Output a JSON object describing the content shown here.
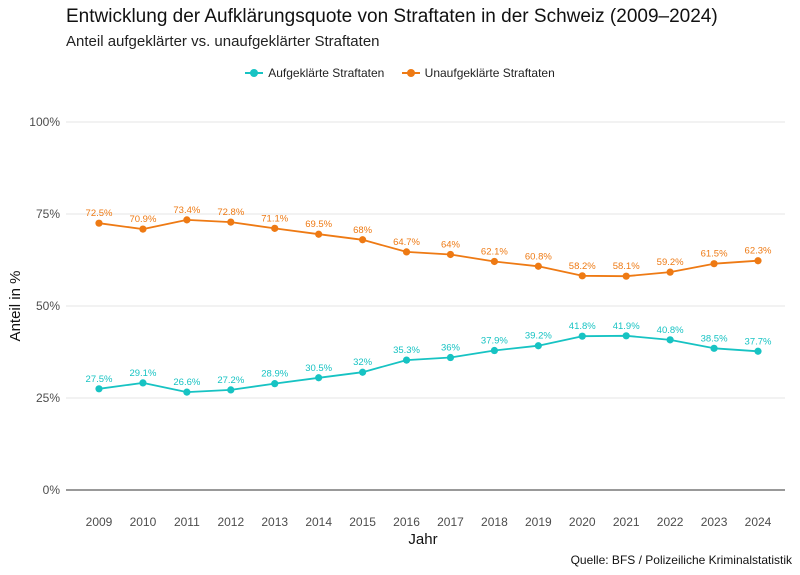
{
  "chart_data": {
    "type": "line",
    "title": "Entwicklung der Aufklärungsquote von Straftaten in der Schweiz (2009–2024)",
    "subtitle": "Anteil aufgeklärter vs. unaufgeklärter Straftaten",
    "xlabel": "Jahr",
    "ylabel": "Anteil in %",
    "caption": "Quelle: BFS / Polizeiliche Kriminalstatistik",
    "legend_position": "top",
    "grid": true,
    "ylim": [
      0,
      100
    ],
    "yticks": [
      0,
      25,
      50,
      75,
      100
    ],
    "ytick_labels": [
      "0%",
      "25%",
      "50%",
      "75%",
      "100%"
    ],
    "x": [
      "2009",
      "2010",
      "2011",
      "2012",
      "2013",
      "2014",
      "2015",
      "2016",
      "2017",
      "2018",
      "2019",
      "2020",
      "2021",
      "2022",
      "2023",
      "2024"
    ],
    "series": [
      {
        "name": "Aufgeklärte Straftaten",
        "color": "#17c3c3",
        "values": [
          27.5,
          29.1,
          26.6,
          27.2,
          28.9,
          30.5,
          32,
          35.3,
          36,
          37.9,
          39.2,
          41.8,
          41.9,
          40.8,
          38.5,
          37.7
        ],
        "labels": [
          "27.5%",
          "29.1%",
          "26.6%",
          "27.2%",
          "28.9%",
          "30.5%",
          "32%",
          "35.3%",
          "36%",
          "37.9%",
          "39.2%",
          "41.8%",
          "41.9%",
          "40.8%",
          "38.5%",
          "37.7%"
        ]
      },
      {
        "name": "Unaufgeklärte Straftaten",
        "color": "#ee7a14",
        "values": [
          72.5,
          70.9,
          73.4,
          72.8,
          71.1,
          69.5,
          68,
          64.7,
          64,
          62.1,
          60.8,
          58.2,
          58.1,
          59.2,
          61.5,
          62.3
        ],
        "labels": [
          "72.5%",
          "70.9%",
          "73.4%",
          "72.8%",
          "71.1%",
          "69.5%",
          "68%",
          "64.7%",
          "64%",
          "62.1%",
          "60.8%",
          "58.2%",
          "58.1%",
          "59.2%",
          "61.5%",
          "62.3%"
        ]
      }
    ]
  }
}
